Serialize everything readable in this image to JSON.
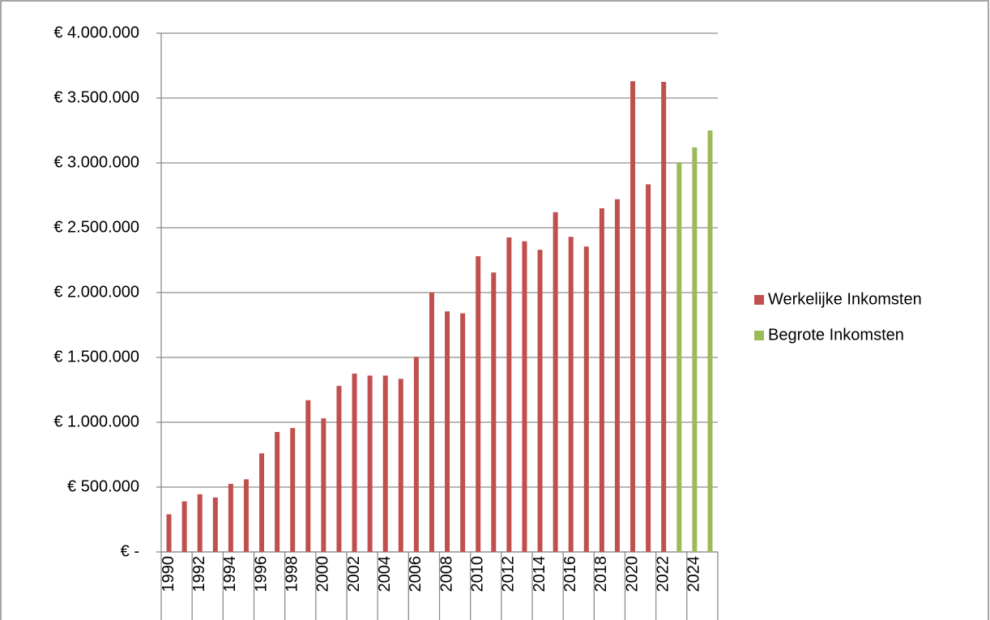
{
  "chart_data": {
    "type": "bar",
    "categories": [
      "1990",
      null,
      "1992",
      null,
      "1994",
      null,
      "1996",
      null,
      "1998",
      null,
      "2000",
      null,
      "2002",
      null,
      "2004",
      null,
      "2006",
      null,
      "2008",
      null,
      "2010",
      null,
      "2012",
      null,
      "2014",
      null,
      "2016",
      null,
      "2018",
      null,
      "2020",
      null,
      "2022",
      null,
      "2024",
      null
    ],
    "series": [
      {
        "name": "Werkelijke Inkomsten",
        "color": "#c0504d",
        "values": [
          290000,
          390000,
          445000,
          420000,
          525000,
          560000,
          760000,
          925000,
          955000,
          1170000,
          1030000,
          1280000,
          1375000,
          1360000,
          1360000,
          1335000,
          1505000,
          2000000,
          1855000,
          1840000,
          2280000,
          2155000,
          2425000,
          2395000,
          2330000,
          2620000,
          2430000,
          2355000,
          2650000,
          2720000,
          3630000,
          2835000,
          3625000,
          null,
          null,
          null
        ]
      },
      {
        "name": "Begrote Inkomsten",
        "color": "#9bbb59",
        "values": [
          null,
          null,
          null,
          null,
          null,
          null,
          null,
          null,
          null,
          null,
          null,
          null,
          null,
          null,
          null,
          null,
          null,
          null,
          null,
          null,
          null,
          null,
          null,
          null,
          null,
          null,
          null,
          null,
          null,
          null,
          null,
          null,
          null,
          3000000,
          3120000,
          3250000
        ]
      }
    ],
    "ylim": [
      0,
      4000000
    ],
    "yticks": [
      {
        "value": 0,
        "label": "€ -"
      },
      {
        "value": 500000,
        "label": "€ 500.000"
      },
      {
        "value": 1000000,
        "label": "€ 1.000.000"
      },
      {
        "value": 1500000,
        "label": "€ 1.500.000"
      },
      {
        "value": 2000000,
        "label": "€ 2.000.000"
      },
      {
        "value": 2500000,
        "label": "€ 2.500.000"
      },
      {
        "value": 3000000,
        "label": "€ 3.000.000"
      },
      {
        "value": 3500000,
        "label": "€ 3.500.000"
      },
      {
        "value": 4000000,
        "label": "€ 4.000.000"
      }
    ],
    "grid": true,
    "legend": "right"
  }
}
